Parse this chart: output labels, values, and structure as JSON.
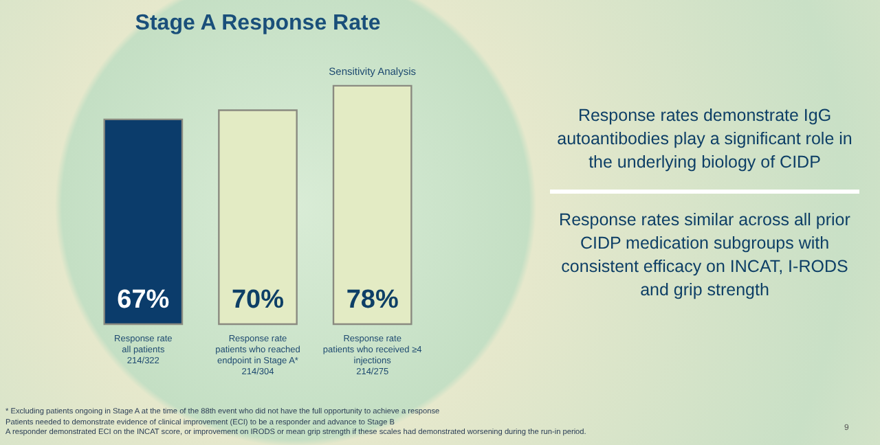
{
  "chart_data": {
    "type": "bar",
    "title": "Stage A Response Rate",
    "categories": [
      "Response rate\nall patients\n214/322",
      "Response rate\npatients who reached\nendpoint in Stage A*\n214/304",
      "Response rate\npatients who received ≥4\ninjections\n214/275"
    ],
    "values": [
      67,
      70,
      78
    ],
    "colors": [
      "#0b3c6b",
      "#e3ebc4",
      "#e3ebc4"
    ],
    "value_labels": [
      "67%",
      "70%",
      "78%"
    ],
    "annotations": [
      {
        "text": "Sensitivity Analysis",
        "x": "Response rate\npatients who received ≥4\ninjections\n214/275",
        "y": 78
      },
      "Response rates demonstrate IgG autoantibodies play a significant role in the underlying biology of CIDP",
      "Response rates similar across all prior CIDP medication subgroups with consistent efficacy on INCAT, I-RODS and grip strength",
      "* Excluding patients ongoing in Stage A at the time of the 88th event who did not have the full opportunity to achieve a response",
      "Patients needed to demonstrate evidence of clinical improvement (ECI) to be a responder and advance to Stage B",
      "A responder demonstrated ECI on the INCAT score, or improvement on IRODS or mean grip strength if these scales had demonstrated worsening during the run-in period.",
      "9"
    ]
  }
}
